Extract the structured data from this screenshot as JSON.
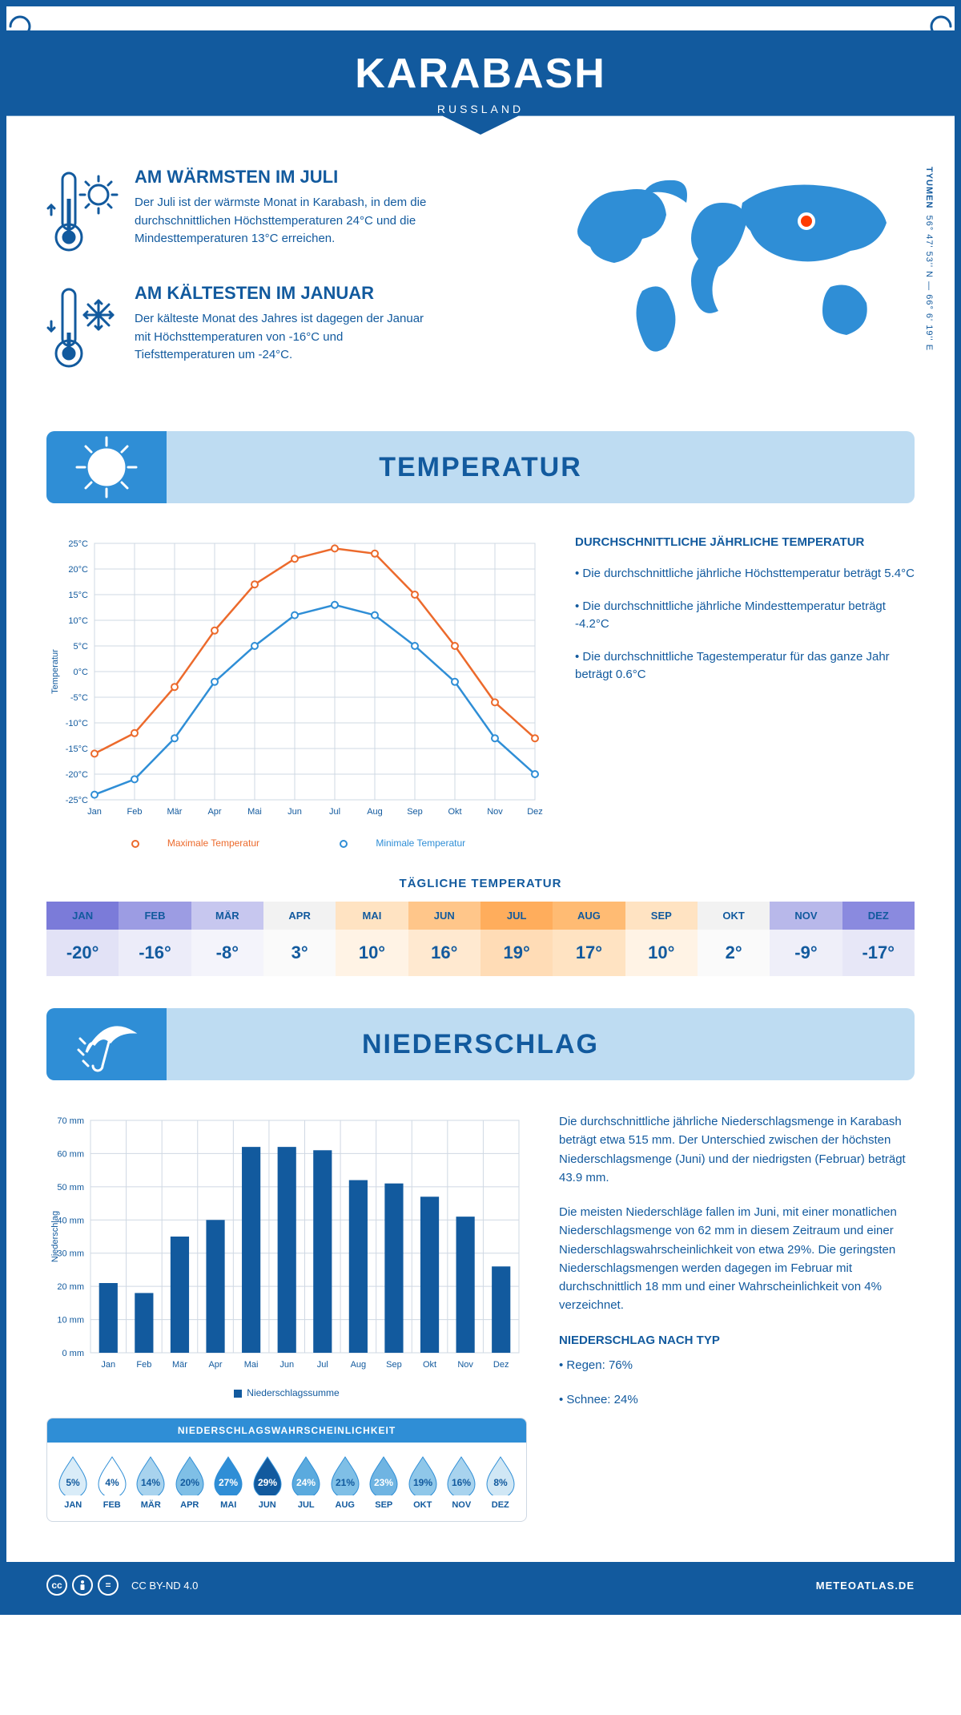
{
  "header": {
    "title": "KARABASH",
    "subtitle": "RUSSLAND"
  },
  "coords": {
    "lat": "56° 47' 53'' N",
    "lon": "66° 6' 19'' E",
    "region": "TYUMEN"
  },
  "map": {
    "marker_x": 315,
    "marker_y": 68,
    "land_color": "#2f8ed6",
    "marker_fill": "#ff3b00",
    "marker_stroke": "#ffffff"
  },
  "facts": {
    "warm": {
      "heading": "AM WÄRMSTEN IM JULI",
      "text": "Der Juli ist der wärmste Monat in Karabash, in dem die durchschnittlichen Höchsttemperaturen 24°C und die Mindesttemperaturen 13°C erreichen."
    },
    "cold": {
      "heading": "AM KÄLTESTEN IM JANUAR",
      "text": "Der kälteste Monat des Jahres ist dagegen der Januar mit Höchsttemperaturen von -16°C und Tiefsttemperaturen um -24°C."
    }
  },
  "sections": {
    "temperature": "TEMPERATUR",
    "precipitation": "NIEDERSCHLAG"
  },
  "temp_chart": {
    "type": "line",
    "months": [
      "Jan",
      "Feb",
      "Mär",
      "Apr",
      "Mai",
      "Jun",
      "Jul",
      "Aug",
      "Sep",
      "Okt",
      "Nov",
      "Dez"
    ],
    "max": [
      -16,
      -12,
      -3,
      8,
      17,
      22,
      24,
      23,
      15,
      5,
      -6,
      -13
    ],
    "min": [
      -24,
      -21,
      -13,
      -2,
      5,
      11,
      13,
      11,
      5,
      -2,
      -13,
      -20
    ],
    "ylim": [
      -25,
      25
    ],
    "ytick_step": 5,
    "colors": {
      "max": "#ec6a2c",
      "min": "#2f8ed6",
      "grid": "#cfd8e3",
      "axis": "#125a9e"
    },
    "y_axis_label": "Temperatur",
    "legend": {
      "max": "Maximale Temperatur",
      "min": "Minimale Temperatur"
    }
  },
  "temp_stats": {
    "heading": "DURCHSCHNITTLICHE JÄHRLICHE TEMPERATUR",
    "b1": "• Die durchschnittliche jährliche Höchsttemperatur beträgt 5.4°C",
    "b2": "• Die durchschnittliche jährliche Mindesttemperatur beträgt -4.2°C",
    "b3": "• Die durchschnittliche Tagestemperatur für das ganze Jahr beträgt 0.6°C"
  },
  "daily_temp": {
    "title": "TÄGLICHE TEMPERATUR",
    "months": [
      "JAN",
      "FEB",
      "MÄR",
      "APR",
      "MAI",
      "JUN",
      "JUL",
      "AUG",
      "SEP",
      "OKT",
      "NOV",
      "DEZ"
    ],
    "values": [
      "-20°",
      "-16°",
      "-8°",
      "3°",
      "10°",
      "16°",
      "19°",
      "17°",
      "10°",
      "2°",
      "-9°",
      "-17°"
    ],
    "header_colors": [
      "#7b7bd9",
      "#9c9ce3",
      "#c7c7ef",
      "#f2f2f2",
      "#ffe3c2",
      "#ffc68a",
      "#ffad5c",
      "#ffbb73",
      "#ffe3c2",
      "#f2f2f2",
      "#b8b8ea",
      "#8a8adf"
    ],
    "value_colors": [
      "#e2e2f6",
      "#ececf9",
      "#f4f4fb",
      "#fafafa",
      "#fff3e5",
      "#ffe9d0",
      "#ffdcb6",
      "#ffe3c2",
      "#fff3e5",
      "#fafafa",
      "#efeff9",
      "#e7e7f7"
    ]
  },
  "precip_chart": {
    "type": "bar",
    "months": [
      "Jan",
      "Feb",
      "Mär",
      "Apr",
      "Mai",
      "Jun",
      "Jul",
      "Aug",
      "Sep",
      "Okt",
      "Nov",
      "Dez"
    ],
    "values": [
      21,
      18,
      35,
      40,
      62,
      62,
      61,
      52,
      51,
      47,
      41,
      26
    ],
    "ylim": [
      0,
      70
    ],
    "ytick_step": 10,
    "bar_color": "#125a9e",
    "grid": "#cfd8e3",
    "y_axis_label": "Niederschlag",
    "legend": "Niederschlagssumme"
  },
  "precip_text": {
    "p1": "Die durchschnittliche jährliche Niederschlagsmenge in Karabash beträgt etwa 515 mm. Der Unterschied zwischen der höchsten Niederschlagsmenge (Juni) und der niedrigsten (Februar) beträgt 43.9 mm.",
    "p2": "Die meisten Niederschläge fallen im Juni, mit einer monatlichen Niederschlagsmenge von 62 mm in diesem Zeitraum und einer Niederschlagswahrscheinlichkeit von etwa 29%. Die geringsten Niederschlagsmengen werden dagegen im Februar mit durchschnittlich 18 mm und einer Wahrscheinlichkeit von 4% verzeichnet.",
    "type_heading": "NIEDERSCHLAG NACH TYP",
    "type_rain": "• Regen: 76%",
    "type_snow": "• Schnee: 24%"
  },
  "probability": {
    "heading": "NIEDERSCHLAGSWAHRSCHEINLICHKEIT",
    "months": [
      "JAN",
      "FEB",
      "MÄR",
      "APR",
      "MAI",
      "JUN",
      "JUL",
      "AUG",
      "SEP",
      "OKT",
      "NOV",
      "DEZ"
    ],
    "values": [
      "5%",
      "4%",
      "14%",
      "20%",
      "27%",
      "29%",
      "24%",
      "21%",
      "23%",
      "19%",
      "16%",
      "8%"
    ],
    "shades": [
      "#d9ecf8",
      "#ffffff",
      "#a8d3ee",
      "#7fbfe6",
      "#2f8ed6",
      "#125a9e",
      "#5aaade",
      "#7fbfe6",
      "#6fb4e2",
      "#8fc7e9",
      "#a8d3ee",
      "#d0e7f5"
    ],
    "text_colors": [
      "#125a9e",
      "#125a9e",
      "#125a9e",
      "#125a9e",
      "#ffffff",
      "#ffffff",
      "#ffffff",
      "#125a9e",
      "#ffffff",
      "#125a9e",
      "#125a9e",
      "#125a9e"
    ]
  },
  "footer": {
    "license": "CC BY-ND 4.0",
    "site": "METEOATLAS.DE"
  }
}
